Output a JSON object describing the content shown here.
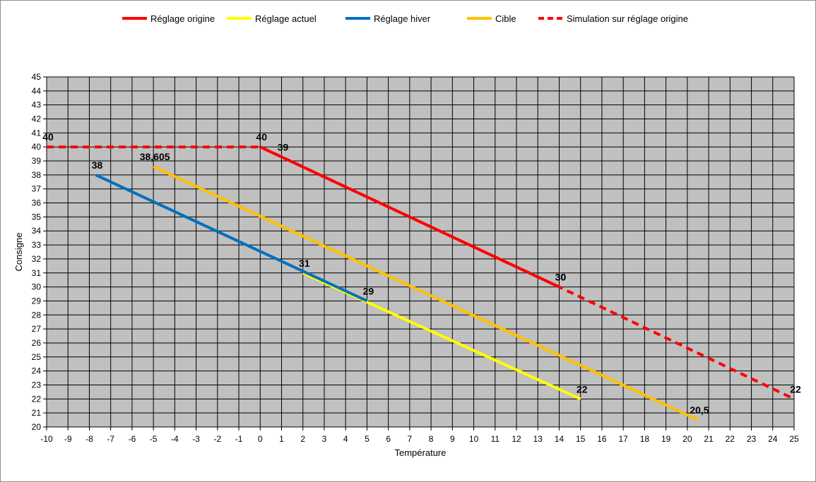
{
  "chart_data": {
    "type": "line",
    "title": "",
    "xlabel": "Température",
    "ylabel": "Consigne",
    "xlim": [
      -10,
      25
    ],
    "ylim": [
      20,
      45
    ],
    "x_step": 1,
    "y_step": 1,
    "grid": true,
    "legend_position": "top",
    "plot_background": "#c0c0c0",
    "series": [
      {
        "name": "Réglage origine",
        "color": "#ff0000",
        "style": "solid",
        "points": [
          [
            0,
            40
          ],
          [
            14,
            30
          ]
        ],
        "labels": [
          {
            "x": 14,
            "y": 30,
            "text": "30"
          }
        ]
      },
      {
        "name": "Réglage actuel",
        "color": "#ffff00",
        "style": "solid",
        "points": [
          [
            2,
            31
          ],
          [
            15,
            22
          ]
        ],
        "labels": [
          {
            "x": 2,
            "y": 31,
            "text": "31"
          },
          {
            "x": 15,
            "y": 22,
            "text": "22"
          }
        ]
      },
      {
        "name": "Réglage hiver",
        "color": "#0070c0",
        "style": "solid",
        "points": [
          [
            -7.7,
            38
          ],
          [
            5,
            29
          ]
        ],
        "labels": [
          {
            "x": -7.7,
            "y": 38,
            "text": "38"
          },
          {
            "x": 5,
            "y": 29,
            "text": "29"
          }
        ]
      },
      {
        "name": "Cible",
        "color": "#ffc000",
        "style": "solid",
        "points": [
          [
            -5,
            38.605
          ],
          [
            20.5,
            20.5
          ]
        ],
        "labels": [
          {
            "x": -5,
            "y": 38.605,
            "text": "38,605"
          },
          {
            "x": 20.5,
            "y": 20.5,
            "text": "20,5"
          }
        ]
      },
      {
        "name": "Simulation sur réglage origine",
        "color": "#ff0000",
        "style": "dashed",
        "points": [
          [
            -10,
            40
          ],
          [
            0,
            40
          ],
          [
            1,
            39.29
          ],
          [
            14,
            30
          ],
          [
            25,
            22
          ]
        ],
        "labels": [
          {
            "x": -10,
            "y": 40,
            "text": "40"
          },
          {
            "x": 0,
            "y": 40,
            "text": "40"
          },
          {
            "x": 1,
            "y": 39.29,
            "text": "39"
          },
          {
            "x": 14,
            "y": 30,
            "text": "30"
          },
          {
            "x": 25,
            "y": 22,
            "text": "22"
          }
        ]
      }
    ]
  }
}
